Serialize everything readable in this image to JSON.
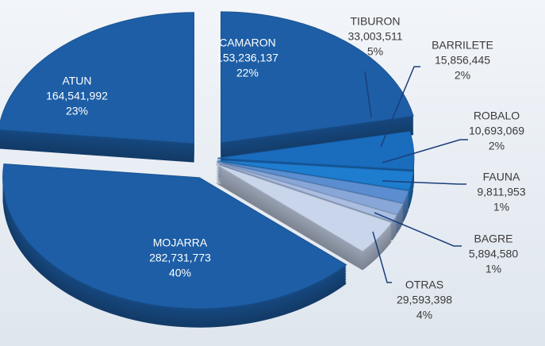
{
  "chart_data": {
    "type": "pie",
    "categories": [
      "CAMARON",
      "TIBURON",
      "BARRILETE",
      "ROBALO",
      "FAUNA",
      "BAGRE",
      "OTRAS",
      "MOJARRA",
      "ATUN"
    ],
    "values": [
      153236137,
      33003511,
      15856445,
      10693069,
      9811953,
      5894580,
      29593398,
      282731773,
      164541992
    ],
    "value_labels": [
      "153,236,137",
      "33,003,511",
      "15,856,445",
      "10,693,069",
      "9,811,953",
      "5,894,580",
      "29,593,398",
      "282,731,773",
      "164,541,992"
    ],
    "percent_labels": [
      "22%",
      "5%",
      "2%",
      "2%",
      "1%",
      "1%",
      "4%",
      "40%",
      "23%"
    ],
    "colors": [
      "#1d5ea6",
      "#1a6cbd",
      "#1f7dd0",
      "#5a8ed0",
      "#88a7d8",
      "#a9bee2",
      "#c9d5eb",
      "#1d5ea6",
      "#1d5ea6"
    ]
  }
}
